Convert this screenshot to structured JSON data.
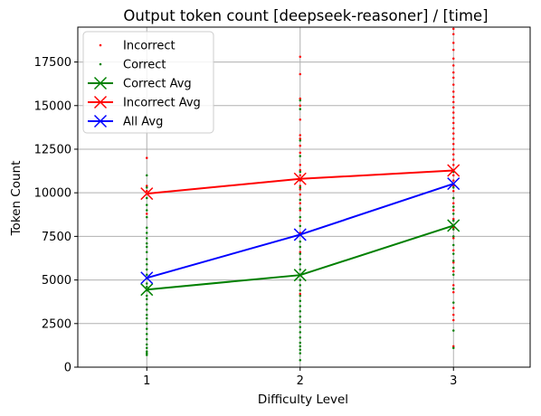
{
  "chart_data": {
    "type": "scatter",
    "title": "Output token count [deepseek-reasoner] / [time]",
    "xlabel": "Difficulty Level",
    "ylabel": "Token Count",
    "xlim": [
      0.55,
      3.5
    ],
    "ylim": [
      0,
      19500
    ],
    "xticks": [
      1,
      2,
      3
    ],
    "yticks": [
      0,
      2500,
      5000,
      7500,
      10000,
      12500,
      15000,
      17500
    ],
    "grid": true,
    "legend_position": "top-left",
    "colors": {
      "incorrect": "#ff0000",
      "correct": "#008000",
      "all": "#0000ff"
    },
    "series": [
      {
        "name": "Incorrect",
        "kind": "points",
        "points": [
          {
            "x": 1,
            "y": 12000
          },
          {
            "x": 1,
            "y": 10400
          },
          {
            "x": 1,
            "y": 10100
          },
          {
            "x": 1,
            "y": 8800
          },
          {
            "x": 2,
            "y": 17800
          },
          {
            "x": 2,
            "y": 16800
          },
          {
            "x": 2,
            "y": 15400
          },
          {
            "x": 2,
            "y": 15000
          },
          {
            "x": 2,
            "y": 14200
          },
          {
            "x": 2,
            "y": 13300
          },
          {
            "x": 2,
            "y": 13100
          },
          {
            "x": 2,
            "y": 12700
          },
          {
            "x": 2,
            "y": 12300
          },
          {
            "x": 2,
            "y": 11600
          },
          {
            "x": 2,
            "y": 11300
          },
          {
            "x": 2,
            "y": 11000
          },
          {
            "x": 2,
            "y": 10700
          },
          {
            "x": 2,
            "y": 10400
          },
          {
            "x": 2,
            "y": 10200
          },
          {
            "x": 2,
            "y": 9900
          },
          {
            "x": 2,
            "y": 9400
          },
          {
            "x": 2,
            "y": 9000
          },
          {
            "x": 2,
            "y": 8400
          },
          {
            "x": 2,
            "y": 7700
          },
          {
            "x": 2,
            "y": 6600
          },
          {
            "x": 2,
            "y": 4200
          },
          {
            "x": 3,
            "y": 19400
          },
          {
            "x": 3,
            "y": 19100
          },
          {
            "x": 3,
            "y": 18600
          },
          {
            "x": 3,
            "y": 18200
          },
          {
            "x": 3,
            "y": 17700
          },
          {
            "x": 3,
            "y": 17300
          },
          {
            "x": 3,
            "y": 16900
          },
          {
            "x": 3,
            "y": 16600
          },
          {
            "x": 3,
            "y": 16200
          },
          {
            "x": 3,
            "y": 15800
          },
          {
            "x": 3,
            "y": 15500
          },
          {
            "x": 3,
            "y": 15200
          },
          {
            "x": 3,
            "y": 14900
          },
          {
            "x": 3,
            "y": 14600
          },
          {
            "x": 3,
            "y": 14300
          },
          {
            "x": 3,
            "y": 14000
          },
          {
            "x": 3,
            "y": 13700
          },
          {
            "x": 3,
            "y": 13400
          },
          {
            "x": 3,
            "y": 13100
          },
          {
            "x": 3,
            "y": 12800
          },
          {
            "x": 3,
            "y": 12500
          },
          {
            "x": 3,
            "y": 12200
          },
          {
            "x": 3,
            "y": 11900
          },
          {
            "x": 3,
            "y": 11600
          },
          {
            "x": 3,
            "y": 11300
          },
          {
            "x": 3,
            "y": 11000
          },
          {
            "x": 3,
            "y": 10700
          },
          {
            "x": 3,
            "y": 10400
          },
          {
            "x": 3,
            "y": 10100
          },
          {
            "x": 3,
            "y": 9700
          },
          {
            "x": 3,
            "y": 9400
          },
          {
            "x": 3,
            "y": 9000
          },
          {
            "x": 3,
            "y": 8500
          },
          {
            "x": 3,
            "y": 8000
          },
          {
            "x": 3,
            "y": 7400
          },
          {
            "x": 3,
            "y": 6700
          },
          {
            "x": 3,
            "y": 6000
          },
          {
            "x": 3,
            "y": 5500
          },
          {
            "x": 3,
            "y": 4700
          },
          {
            "x": 3,
            "y": 4300
          },
          {
            "x": 3,
            "y": 3400
          },
          {
            "x": 3,
            "y": 3000
          },
          {
            "x": 3,
            "y": 2700
          },
          {
            "x": 3,
            "y": 1200
          }
        ]
      },
      {
        "name": "Correct",
        "kind": "points",
        "points": [
          {
            "x": 1,
            "y": 11000
          },
          {
            "x": 1,
            "y": 10300
          },
          {
            "x": 1,
            "y": 9700
          },
          {
            "x": 1,
            "y": 9300
          },
          {
            "x": 1,
            "y": 9000
          },
          {
            "x": 1,
            "y": 8600
          },
          {
            "x": 1,
            "y": 8000
          },
          {
            "x": 1,
            "y": 7700
          },
          {
            "x": 1,
            "y": 7400
          },
          {
            "x": 1,
            "y": 7100
          },
          {
            "x": 1,
            "y": 6900
          },
          {
            "x": 1,
            "y": 6600
          },
          {
            "x": 1,
            "y": 6200
          },
          {
            "x": 1,
            "y": 5900
          },
          {
            "x": 1,
            "y": 5600
          },
          {
            "x": 1,
            "y": 5300
          },
          {
            "x": 1,
            "y": 5100
          },
          {
            "x": 1,
            "y": 4800
          },
          {
            "x": 1,
            "y": 4600
          },
          {
            "x": 1,
            "y": 4400
          },
          {
            "x": 1,
            "y": 4100
          },
          {
            "x": 1,
            "y": 3900
          },
          {
            "x": 1,
            "y": 3600
          },
          {
            "x": 1,
            "y": 3300
          },
          {
            "x": 1,
            "y": 3000
          },
          {
            "x": 1,
            "y": 2800
          },
          {
            "x": 1,
            "y": 2500
          },
          {
            "x": 1,
            "y": 2200
          },
          {
            "x": 1,
            "y": 1900
          },
          {
            "x": 1,
            "y": 1600
          },
          {
            "x": 1,
            "y": 1300
          },
          {
            "x": 1,
            "y": 1100
          },
          {
            "x": 1,
            "y": 900
          },
          {
            "x": 1,
            "y": 800
          },
          {
            "x": 1,
            "y": 700
          },
          {
            "x": 2,
            "y": 15300
          },
          {
            "x": 2,
            "y": 14800
          },
          {
            "x": 2,
            "y": 13000
          },
          {
            "x": 2,
            "y": 12100
          },
          {
            "x": 2,
            "y": 11200
          },
          {
            "x": 2,
            "y": 10300
          },
          {
            "x": 2,
            "y": 9600
          },
          {
            "x": 2,
            "y": 9100
          },
          {
            "x": 2,
            "y": 8600
          },
          {
            "x": 2,
            "y": 8100
          },
          {
            "x": 2,
            "y": 7600
          },
          {
            "x": 2,
            "y": 7200
          },
          {
            "x": 2,
            "y": 6900
          },
          {
            "x": 2,
            "y": 6500
          },
          {
            "x": 2,
            "y": 6200
          },
          {
            "x": 2,
            "y": 5900
          },
          {
            "x": 2,
            "y": 5600
          },
          {
            "x": 2,
            "y": 5300
          },
          {
            "x": 2,
            "y": 5000
          },
          {
            "x": 2,
            "y": 4700
          },
          {
            "x": 2,
            "y": 4400
          },
          {
            "x": 2,
            "y": 4100
          },
          {
            "x": 2,
            "y": 3800
          },
          {
            "x": 2,
            "y": 3500
          },
          {
            "x": 2,
            "y": 3200
          },
          {
            "x": 2,
            "y": 2900
          },
          {
            "x": 2,
            "y": 2600
          },
          {
            "x": 2,
            "y": 2300
          },
          {
            "x": 2,
            "y": 2000
          },
          {
            "x": 2,
            "y": 1700
          },
          {
            "x": 2,
            "y": 1400
          },
          {
            "x": 2,
            "y": 1200
          },
          {
            "x": 2,
            "y": 1000
          },
          {
            "x": 2,
            "y": 800
          },
          {
            "x": 2,
            "y": 400
          },
          {
            "x": 3,
            "y": 11200
          },
          {
            "x": 3,
            "y": 10300
          },
          {
            "x": 3,
            "y": 9700
          },
          {
            "x": 3,
            "y": 9200
          },
          {
            "x": 3,
            "y": 8800
          },
          {
            "x": 3,
            "y": 8400
          },
          {
            "x": 3,
            "y": 7900
          },
          {
            "x": 3,
            "y": 7500
          },
          {
            "x": 3,
            "y": 7000
          },
          {
            "x": 3,
            "y": 6500
          },
          {
            "x": 3,
            "y": 6100
          },
          {
            "x": 3,
            "y": 5700
          },
          {
            "x": 3,
            "y": 5300
          },
          {
            "x": 3,
            "y": 4500
          },
          {
            "x": 3,
            "y": 3700
          },
          {
            "x": 3,
            "y": 2100
          },
          {
            "x": 3,
            "y": 1100
          }
        ]
      },
      {
        "name": "Correct Avg",
        "kind": "line",
        "points": [
          {
            "x": 1,
            "y": 4450
          },
          {
            "x": 2,
            "y": 5280
          },
          {
            "x": 3,
            "y": 8120
          }
        ]
      },
      {
        "name": "Incorrect Avg",
        "kind": "line",
        "points": [
          {
            "x": 1,
            "y": 9950
          },
          {
            "x": 2,
            "y": 10800
          },
          {
            "x": 3,
            "y": 11280
          }
        ]
      },
      {
        "name": "All Avg",
        "kind": "line",
        "points": [
          {
            "x": 1,
            "y": 5120
          },
          {
            "x": 2,
            "y": 7600
          },
          {
            "x": 3,
            "y": 10520
          }
        ]
      }
    ]
  }
}
